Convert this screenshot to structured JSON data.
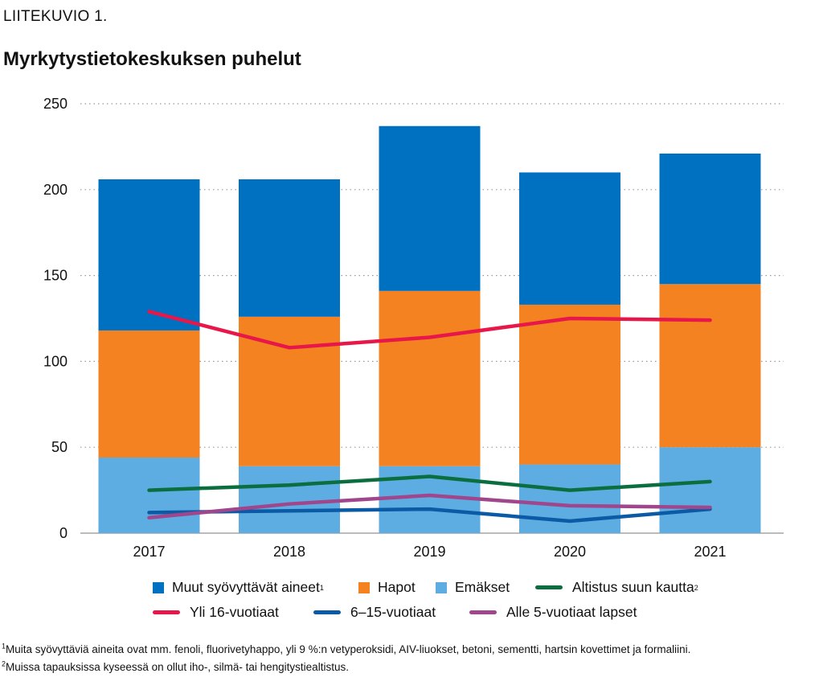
{
  "header": {
    "pretitle": "LIITEKUVIO 1.",
    "title": "Myrkytystietokeskuksen puhelut"
  },
  "colors": {
    "muut": "#0070c0",
    "hapot": "#f58220",
    "emakset": "#5dade2",
    "altistus": "#0b6e3f",
    "yli16": "#e8174a",
    "v6_15": "#0b5aa6",
    "alle5": "#a0468c",
    "grid": "#9a9a9a"
  },
  "chart_data": {
    "type": "bar",
    "stacked": true,
    "categories": [
      "2017",
      "2018",
      "2019",
      "2020",
      "2021"
    ],
    "ylim": [
      0,
      250
    ],
    "yticks": [
      0,
      50,
      100,
      150,
      200,
      250
    ],
    "grid": true,
    "legend_position": "bottom",
    "bar_series": [
      {
        "name": "Emäkset",
        "color_key": "emakset",
        "values": [
          44,
          39,
          39,
          40,
          50
        ]
      },
      {
        "name": "Hapot",
        "color_key": "hapot",
        "values": [
          74,
          87,
          102,
          93,
          95
        ]
      },
      {
        "name": "Muut syövyttävät aineet",
        "sup": "1",
        "color_key": "muut",
        "values": [
          88,
          80,
          96,
          77,
          76
        ]
      }
    ],
    "line_series": [
      {
        "name": "Altistus suun kautta",
        "sup": "2",
        "color_key": "altistus",
        "values": [
          25,
          28,
          33,
          25,
          30
        ]
      },
      {
        "name": "Yli 16-vuotiaat",
        "color_key": "yli16",
        "values": [
          129,
          108,
          114,
          125,
          124
        ]
      },
      {
        "name": "6–15-vuotiaat",
        "color_key": "v6_15",
        "values": [
          12,
          13,
          14,
          7,
          14
        ]
      },
      {
        "name": "Alle 5-vuotiaat lapset",
        "color_key": "alle5",
        "values": [
          9,
          17,
          22,
          16,
          15
        ]
      }
    ]
  },
  "legend": {
    "row1": [
      {
        "label": "Muut syövyttävät aineet",
        "sup": "1",
        "kind": "box",
        "color_key": "muut"
      },
      {
        "label": "Hapot",
        "sup": "",
        "kind": "box",
        "color_key": "hapot"
      },
      {
        "label": "Emäkset",
        "sup": "",
        "kind": "box",
        "color_key": "emakset"
      },
      {
        "label": "Altistus suun kautta",
        "sup": "2",
        "kind": "line",
        "color_key": "altistus"
      }
    ],
    "row2": [
      {
        "label": "Yli 16-vuotiaat",
        "sup": "",
        "kind": "line",
        "color_key": "yli16"
      },
      {
        "label": "6–15-vuotiaat",
        "sup": "",
        "kind": "line",
        "color_key": "v6_15"
      },
      {
        "label": "Alle 5-vuotiaat lapset",
        "sup": "",
        "kind": "line",
        "color_key": "alle5"
      }
    ]
  },
  "footnotes": [
    {
      "mark": "1",
      "text": "Muita syövyttäviä aineita ovat mm. fenoli, fluorivetyhappo, yli 9 %:n vetyperoksidi, AIV-liuokset, betoni, sementti, hartsin kovettimet ja formaliini."
    },
    {
      "mark": "2",
      "text": "Muissa tapauksissa kyseessä on ollut iho-, silmä- tai hengitystiealtistus."
    }
  ]
}
